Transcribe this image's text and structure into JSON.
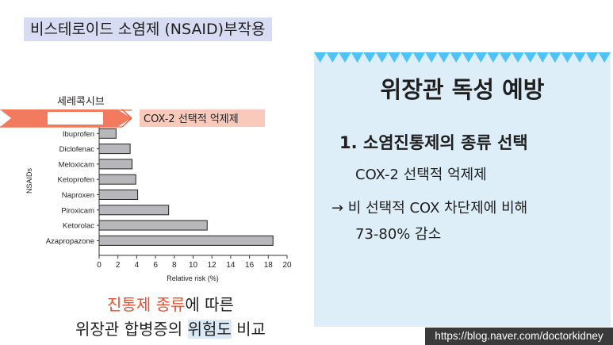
{
  "header": {
    "title": "비스테로이드 소염제 (NSAID)부작용"
  },
  "annotations": {
    "celecoxib_label": "세레콕시브",
    "cox2_callout": "COX-2 선택적 억제제"
  },
  "chart_data": {
    "type": "bar",
    "orientation": "horizontal",
    "categories": [
      "Celecoxib",
      "Ibuprofen",
      "Diclofenac",
      "Meloxicam",
      "Ketoprofen",
      "Naproxen",
      "Piroxicam",
      "Ketorolac",
      "Azapropazone"
    ],
    "values": [
      1.5,
      1.8,
      3.3,
      3.5,
      3.9,
      4.1,
      7.4,
      11.5,
      18.5
    ],
    "xlabel": "Relative risk (%)",
    "ylabel": "NSAIDs",
    "xlim": [
      0,
      20
    ],
    "xticks": [
      0,
      2,
      4,
      6,
      8,
      10,
      12,
      14,
      16,
      18,
      20
    ],
    "bar_color": "#b8b8bc",
    "highlight_color": "#f27a5f"
  },
  "caption": {
    "line1_red": "진통제 종류",
    "line1_rest": "에 따른",
    "line2_a": "위장관 합병증의 ",
    "line2_hl": "위험도",
    "line2_b": " 비교"
  },
  "panel": {
    "title": "위장관 독성 예방",
    "heading": "1. 소염진통제의 종류 선택",
    "line1": "COX-2 선택적 억제제",
    "line2": "→ 비 선택적 COX 차단제에 비해",
    "line3": "73-80% 감소"
  },
  "footer": {
    "url": "https://blog.naver.com/doctorkidney"
  }
}
